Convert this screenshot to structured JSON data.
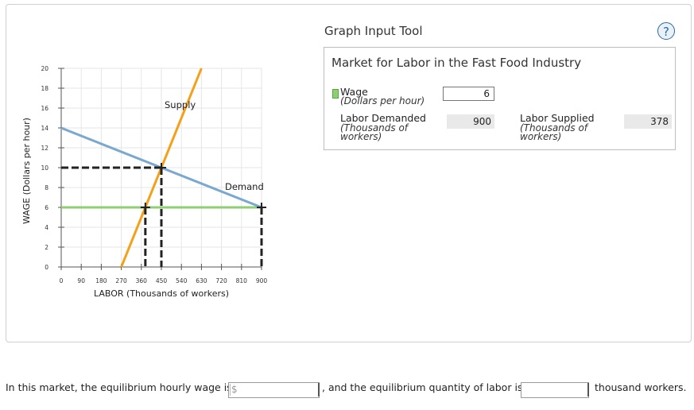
{
  "tool": {
    "title": "Graph Input Tool",
    "help": "?",
    "market_title": "Market for Labor in the Fast Food Industry",
    "wage_label": "Wage",
    "wage_unit": "(Dollars per hour)",
    "wage_value": "6",
    "demanded_label": "Labor Demanded",
    "demanded_unit_1": "(Thousands of",
    "demanded_unit_2": "workers)",
    "demanded_value": "900",
    "supplied_label": "Labor Supplied",
    "supplied_unit_1": "(Thousands of",
    "supplied_unit_2": "workers)",
    "supplied_value": "378"
  },
  "question": {
    "part1": "In this market, the equilibrium hourly wage is",
    "currency": "$",
    "part2": ", and the equilibrium quantity of labor is",
    "part3": "thousand workers."
  },
  "colors": {
    "supply": "#f5a018",
    "demand": "#7aa8cf",
    "wage_line": "#8dcf72",
    "guide": "#222222",
    "grid": "#e6e6e6"
  },
  "chart_data": {
    "type": "line",
    "xlabel": "LABOR (Thousands of workers)",
    "ylabel": "WAGE (Dollars per hour)",
    "xlim": [
      0,
      900
    ],
    "ylim": [
      0,
      20
    ],
    "xticks": [
      0,
      90,
      180,
      270,
      360,
      450,
      540,
      630,
      720,
      810,
      900
    ],
    "yticks": [
      0,
      2,
      4,
      6,
      8,
      10,
      12,
      14,
      16,
      18,
      20
    ],
    "grid": true,
    "series": [
      {
        "name": "Supply",
        "x": [
          270,
          630
        ],
        "y": [
          0,
          20
        ]
      },
      {
        "name": "Demand",
        "x": [
          0,
          900
        ],
        "y": [
          14,
          6
        ]
      }
    ],
    "wage_line": {
      "y": 6
    },
    "equilibrium": {
      "x": 450,
      "y": 10
    },
    "points": [
      {
        "x": 378,
        "y": 6
      },
      {
        "x": 450,
        "y": 10
      },
      {
        "x": 900,
        "y": 6
      }
    ]
  }
}
